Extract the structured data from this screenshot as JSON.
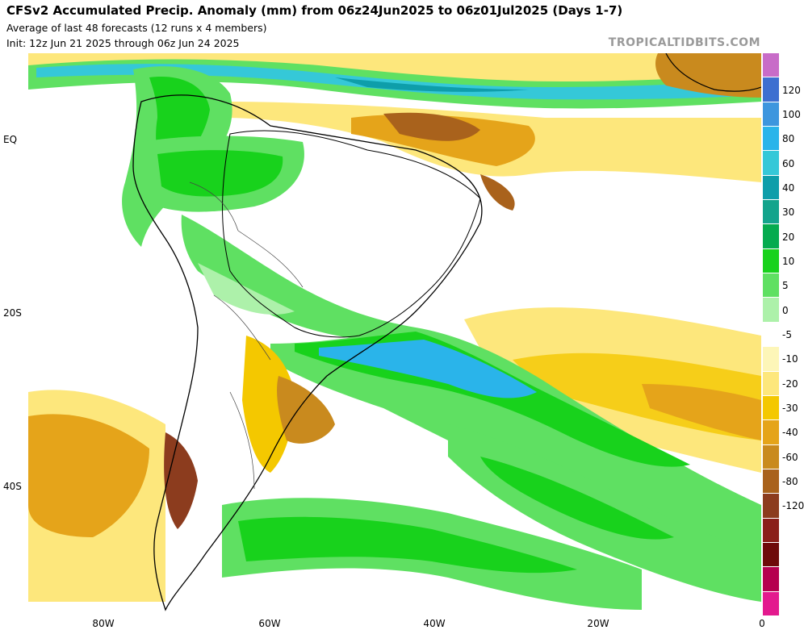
{
  "header": {
    "title": "CFSv2 Accumulated Precip. Anomaly (mm) from 06z24Jun2025 to 06z01Jul2025 (Days 1-7)",
    "subtitle1": "Average of last 48 forecasts (12 runs x 4 members)",
    "subtitle2": "Init: 12z Jun 21 2025 through 06z Jun 24 2025",
    "brand": "TROPICALTIDBITS.COM"
  },
  "map": {
    "region": "South America",
    "lat_labels": [
      "EQ",
      "20S",
      "40S"
    ],
    "lon_labels": [
      "80W",
      "60W",
      "40W",
      "20W",
      "0"
    ]
  },
  "colorbar": {
    "units": "mm",
    "colors": [
      "#c86cc8",
      "#3d6fd0",
      "#3d96de",
      "#2ab4ea",
      "#35c8d8",
      "#0e9eaa",
      "#13a48c",
      "#05ab4f",
      "#18d21c",
      "#5fe062",
      "#adf1aa",
      "#ffffff",
      "#fdf6b8",
      "#fde77c",
      "#f4c800",
      "#e5a41a",
      "#c98a1e",
      "#a9621c",
      "#8c3c1e",
      "#8a1f1a",
      "#6e0a0a",
      "#b5004f",
      "#e31a8e"
    ],
    "ticks": [
      {
        "label": "120",
        "value": 120
      },
      {
        "label": "100",
        "value": 100
      },
      {
        "label": "80",
        "value": 80
      },
      {
        "label": "60",
        "value": 60
      },
      {
        "label": "40",
        "value": 40
      },
      {
        "label": "30",
        "value": 30
      },
      {
        "label": "20",
        "value": 20
      },
      {
        "label": "10",
        "value": 10
      },
      {
        "label": "5",
        "value": 5
      },
      {
        "label": "0",
        "value": 0
      },
      {
        "label": "-5",
        "value": -5
      },
      {
        "label": "-10",
        "value": -10
      },
      {
        "label": "-20",
        "value": -20
      },
      {
        "label": "-30",
        "value": -30
      },
      {
        "label": "-40",
        "value": -40
      },
      {
        "label": "-60",
        "value": -60
      },
      {
        "label": "-80",
        "value": -80
      },
      {
        "label": "-120",
        "value": -120
      }
    ]
  }
}
